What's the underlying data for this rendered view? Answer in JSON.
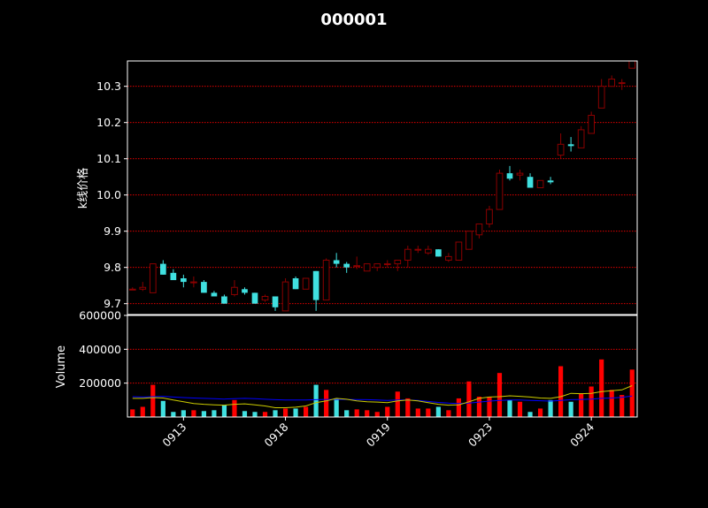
{
  "chart_data": [
    {
      "type": "candlestick",
      "title": "000001",
      "ylabel": "k线价格",
      "ylim": [
        9.67,
        10.37
      ],
      "yticks": [
        9.7,
        9.8,
        9.9,
        10.0,
        10.1,
        10.2,
        10.3
      ],
      "grid": true,
      "colors": {
        "up": "#8b0000",
        "down": "#40e0e0",
        "grid": "#ff0000"
      },
      "ohlc": [
        [
          9.74,
          9.745,
          9.74,
          9.74
        ],
        [
          9.74,
          9.76,
          9.735,
          9.745
        ],
        [
          9.73,
          9.81,
          9.73,
          9.81
        ],
        [
          9.81,
          9.82,
          9.78,
          9.78
        ],
        [
          9.785,
          9.795,
          9.77,
          9.765
        ],
        [
          9.77,
          9.78,
          9.745,
          9.76
        ],
        [
          9.76,
          9.775,
          9.745,
          9.76
        ],
        [
          9.76,
          9.765,
          9.73,
          9.73
        ],
        [
          9.73,
          9.735,
          9.72,
          9.72
        ],
        [
          9.72,
          9.725,
          9.7,
          9.7
        ],
        [
          9.725,
          9.765,
          9.72,
          9.745
        ],
        [
          9.74,
          9.745,
          9.725,
          9.73
        ],
        [
          9.73,
          9.73,
          9.7,
          9.7
        ],
        [
          9.71,
          9.725,
          9.705,
          9.72
        ],
        [
          9.72,
          9.72,
          9.68,
          9.69
        ],
        [
          9.68,
          9.77,
          9.68,
          9.76
        ],
        [
          9.77,
          9.775,
          9.74,
          9.74
        ],
        [
          9.74,
          9.77,
          9.74,
          9.77
        ],
        [
          9.79,
          9.79,
          9.68,
          9.71
        ],
        [
          9.71,
          9.825,
          9.71,
          9.82
        ],
        [
          9.82,
          9.84,
          9.8,
          9.81
        ],
        [
          9.81,
          9.815,
          9.785,
          9.8
        ],
        [
          9.805,
          9.83,
          9.795,
          9.805
        ],
        [
          9.79,
          9.81,
          9.79,
          9.81
        ],
        [
          9.8,
          9.81,
          9.79,
          9.81
        ],
        [
          9.81,
          9.82,
          9.8,
          9.81
        ],
        [
          9.81,
          9.82,
          9.79,
          9.82
        ],
        [
          9.82,
          9.86,
          9.8,
          9.85
        ],
        [
          9.85,
          9.86,
          9.84,
          9.85
        ],
        [
          9.84,
          9.86,
          9.835,
          9.85
        ],
        [
          9.85,
          9.85,
          9.83,
          9.83
        ],
        [
          9.82,
          9.84,
          9.815,
          9.83
        ],
        [
          9.82,
          9.87,
          9.82,
          9.87
        ],
        [
          9.85,
          9.9,
          9.85,
          9.9
        ],
        [
          9.89,
          9.92,
          9.88,
          9.92
        ],
        [
          9.92,
          9.97,
          9.91,
          9.96
        ],
        [
          9.96,
          10.07,
          9.96,
          10.06
        ],
        [
          10.06,
          10.08,
          10.04,
          10.045
        ],
        [
          10.055,
          10.07,
          10.04,
          10.06
        ],
        [
          10.05,
          10.06,
          10.02,
          10.02
        ],
        [
          10.02,
          10.04,
          10.02,
          10.04
        ],
        [
          10.04,
          10.05,
          10.03,
          10.035
        ],
        [
          10.11,
          10.17,
          10.1,
          10.14
        ],
        [
          10.14,
          10.16,
          10.12,
          10.135
        ],
        [
          10.13,
          10.19,
          10.13,
          10.18
        ],
        [
          10.17,
          10.23,
          10.17,
          10.22
        ],
        [
          10.24,
          10.32,
          10.24,
          10.3
        ],
        [
          10.3,
          10.33,
          10.3,
          10.32
        ],
        [
          10.31,
          10.32,
          10.29,
          10.31
        ],
        [
          10.35,
          10.37,
          10.35,
          10.37
        ]
      ]
    },
    {
      "type": "bar",
      "ylabel": "Volume",
      "ylim": [
        0,
        600000
      ],
      "yticks": [
        200000,
        400000,
        600000
      ],
      "grid": true,
      "xtick_labels": [
        "0913",
        "0918",
        "0919",
        "0923",
        "0924"
      ],
      "xtick_index": [
        5,
        15,
        25,
        35,
        45
      ],
      "colors": {
        "up": "#ff0000",
        "down": "#40e0e0",
        "ma_long": "#0000ff",
        "ma_short": "#cccc00"
      },
      "values": [
        45000,
        60000,
        190000,
        95000,
        30000,
        40000,
        40000,
        35000,
        40000,
        70000,
        100000,
        35000,
        30000,
        30000,
        40000,
        50000,
        50000,
        60000,
        190000,
        160000,
        110000,
        40000,
        45000,
        40000,
        30000,
        60000,
        150000,
        110000,
        50000,
        50000,
        60000,
        40000,
        110000,
        210000,
        120000,
        120000,
        260000,
        100000,
        90000,
        30000,
        50000,
        100000,
        300000,
        90000,
        140000,
        180000,
        340000,
        160000,
        130000,
        280000
      ],
      "ma_short": [
        110000,
        110000,
        115000,
        112000,
        100000,
        90000,
        80000,
        75000,
        72000,
        70000,
        75000,
        78000,
        72000,
        65000,
        55000,
        55000,
        58000,
        65000,
        85000,
        95000,
        110000,
        105000,
        95000,
        90000,
        88000,
        85000,
        95000,
        100000,
        95000,
        85000,
        75000,
        70000,
        72000,
        90000,
        110000,
        118000,
        120000,
        125000,
        122000,
        118000,
        112000,
        110000,
        120000,
        140000,
        138000,
        140000,
        150000,
        155000,
        160000,
        185000
      ],
      "ma_long": [
        120000,
        118000,
        120000,
        122000,
        118000,
        115000,
        112000,
        110000,
        108000,
        106000,
        108000,
        110000,
        108000,
        105000,
        102000,
        100000,
        100000,
        100000,
        102000,
        104000,
        104000,
        104000,
        103000,
        102000,
        100000,
        98000,
        100000,
        100000,
        98000,
        92000,
        86000,
        82000,
        80000,
        82000,
        88000,
        94000,
        98000,
        100000,
        100000,
        98000,
        96000,
        94000,
        98000,
        102000,
        104000,
        106000,
        110000,
        112000,
        116000,
        124000
      ]
    }
  ]
}
